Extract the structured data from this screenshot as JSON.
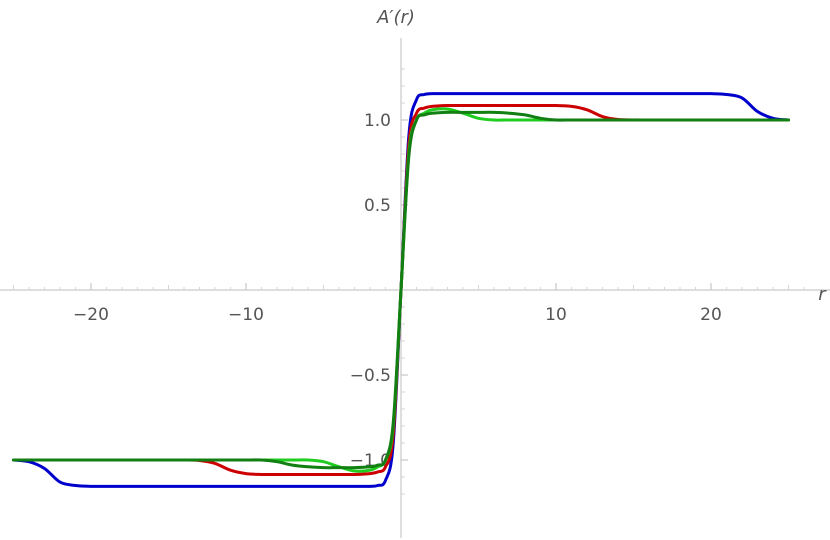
{
  "chart_data": {
    "type": "line",
    "title": "",
    "xlabel": "r",
    "ylabel": "A′(r)",
    "xlim": [
      -26,
      26
    ],
    "ylim": [
      -1.25,
      1.35
    ],
    "grid": false,
    "x_ticks": [
      {
        "value": -20,
        "label": "−20"
      },
      {
        "value": -10,
        "label": "−10"
      },
      {
        "value": 10,
        "label": "10"
      },
      {
        "value": 20,
        "label": "20"
      }
    ],
    "y_ticks": [
      {
        "value": 1.0,
        "label": "1.0"
      },
      {
        "value": 0.5,
        "label": "0.5"
      },
      {
        "value": -0.5,
        "label": "−0.5"
      },
      {
        "value": -1.0,
        "label": "−1.0"
      }
    ],
    "x": [
      -25,
      -24,
      -23,
      -22,
      -21,
      -20,
      -19,
      -18,
      -16,
      -14,
      -13,
      -12,
      -11,
      -10,
      -9,
      -8,
      -7,
      -6,
      -5,
      -4,
      -3,
      -2,
      -1.5,
      -1,
      -0.5,
      0,
      0.5,
      1,
      1.5,
      2,
      3,
      4,
      5,
      6,
      7,
      8,
      9,
      10,
      11,
      12,
      13,
      14,
      16,
      18,
      19,
      20,
      21,
      22,
      23,
      24,
      25
    ],
    "series": [
      {
        "color": "#0000cc",
        "values": [
          -1.0,
          -1.01,
          -1.05,
          -1.13,
          -1.15,
          -1.155,
          -1.155,
          -1.155,
          -1.155,
          -1.155,
          -1.155,
          -1.155,
          -1.155,
          -1.155,
          -1.155,
          -1.155,
          -1.155,
          -1.155,
          -1.155,
          -1.155,
          -1.155,
          -1.155,
          -1.15,
          -1.12,
          -0.9,
          0.0,
          0.9,
          1.12,
          1.15,
          1.155,
          1.155,
          1.155,
          1.155,
          1.155,
          1.155,
          1.155,
          1.155,
          1.155,
          1.155,
          1.155,
          1.155,
          1.155,
          1.155,
          1.155,
          1.155,
          1.155,
          1.15,
          1.13,
          1.05,
          1.01,
          1.0
        ]
      },
      {
        "color": "#cc0000",
        "values": [
          -1.0,
          -1.0,
          -1.0,
          -1.0,
          -1.0,
          -1.0,
          -1.0,
          -1.0,
          -1.0,
          -1.0,
          -1.003,
          -1.02,
          -1.06,
          -1.08,
          -1.085,
          -1.085,
          -1.085,
          -1.085,
          -1.085,
          -1.085,
          -1.085,
          -1.08,
          -1.07,
          -1.04,
          -0.85,
          0.0,
          0.85,
          1.04,
          1.07,
          1.08,
          1.085,
          1.085,
          1.085,
          1.085,
          1.085,
          1.085,
          1.085,
          1.085,
          1.08,
          1.06,
          1.02,
          1.003,
          1.0,
          1.0,
          1.0,
          1.0,
          1.0,
          1.0,
          1.0,
          1.0,
          1.0
        ]
      },
      {
        "color": "#1fcc1f",
        "values": [
          -1.0,
          -1.0,
          -1.0,
          -1.0,
          -1.0,
          -1.0,
          -1.0,
          -1.0,
          -1.0,
          -1.0,
          -1.0,
          -1.0,
          -1.0,
          -1.0,
          -1.0,
          -1.0,
          -1.0,
          -1.0,
          -1.01,
          -1.04,
          -1.065,
          -1.06,
          -1.04,
          -1.0,
          -0.8,
          0.0,
          0.8,
          1.0,
          1.04,
          1.06,
          1.065,
          1.04,
          1.01,
          1.0,
          1.0,
          1.0,
          1.0,
          1.0,
          1.0,
          1.0,
          1.0,
          1.0,
          1.0,
          1.0,
          1.0,
          1.0,
          1.0,
          1.0,
          1.0,
          1.0,
          1.0
        ]
      },
      {
        "color": "#117f11",
        "values": [
          -1.0,
          -1.0,
          -1.0,
          -1.0,
          -1.0,
          -1.0,
          -1.0,
          -1.0,
          -1.0,
          -1.0,
          -1.0,
          -1.0,
          -1.0,
          -1.0,
          -1.0,
          -1.01,
          -1.03,
          -1.04,
          -1.045,
          -1.045,
          -1.045,
          -1.04,
          -1.03,
          -1.0,
          -0.78,
          0.0,
          0.78,
          1.0,
          1.03,
          1.04,
          1.045,
          1.045,
          1.045,
          1.045,
          1.04,
          1.03,
          1.01,
          1.0,
          1.0,
          1.0,
          1.0,
          1.0,
          1.0,
          1.0,
          1.0,
          1.0,
          1.0,
          1.0,
          1.0,
          1.0,
          1.0
        ]
      }
    ]
  }
}
